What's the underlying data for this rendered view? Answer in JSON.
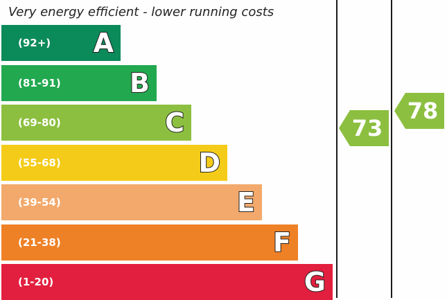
{
  "caption": "Very energy efficient - lower running costs",
  "chart_data": {
    "type": "bar",
    "categories": [
      "A",
      "B",
      "C",
      "D",
      "E",
      "F",
      "G"
    ],
    "ranges": [
      "(92+)",
      "(81-91)",
      "(69-80)",
      "(55-68)",
      "(39-54)",
      "(21-38)",
      "(1-20)"
    ],
    "colors": [
      "#0b8a5a",
      "#22a84f",
      "#8cbf40",
      "#f4cb18",
      "#f2a96b",
      "#ee8126",
      "#e21f3e"
    ],
    "current": {
      "value": 73,
      "band": "C",
      "color": "#8cbf40"
    },
    "potential": {
      "value": 78,
      "band": "C",
      "color": "#8cbf40"
    }
  }
}
